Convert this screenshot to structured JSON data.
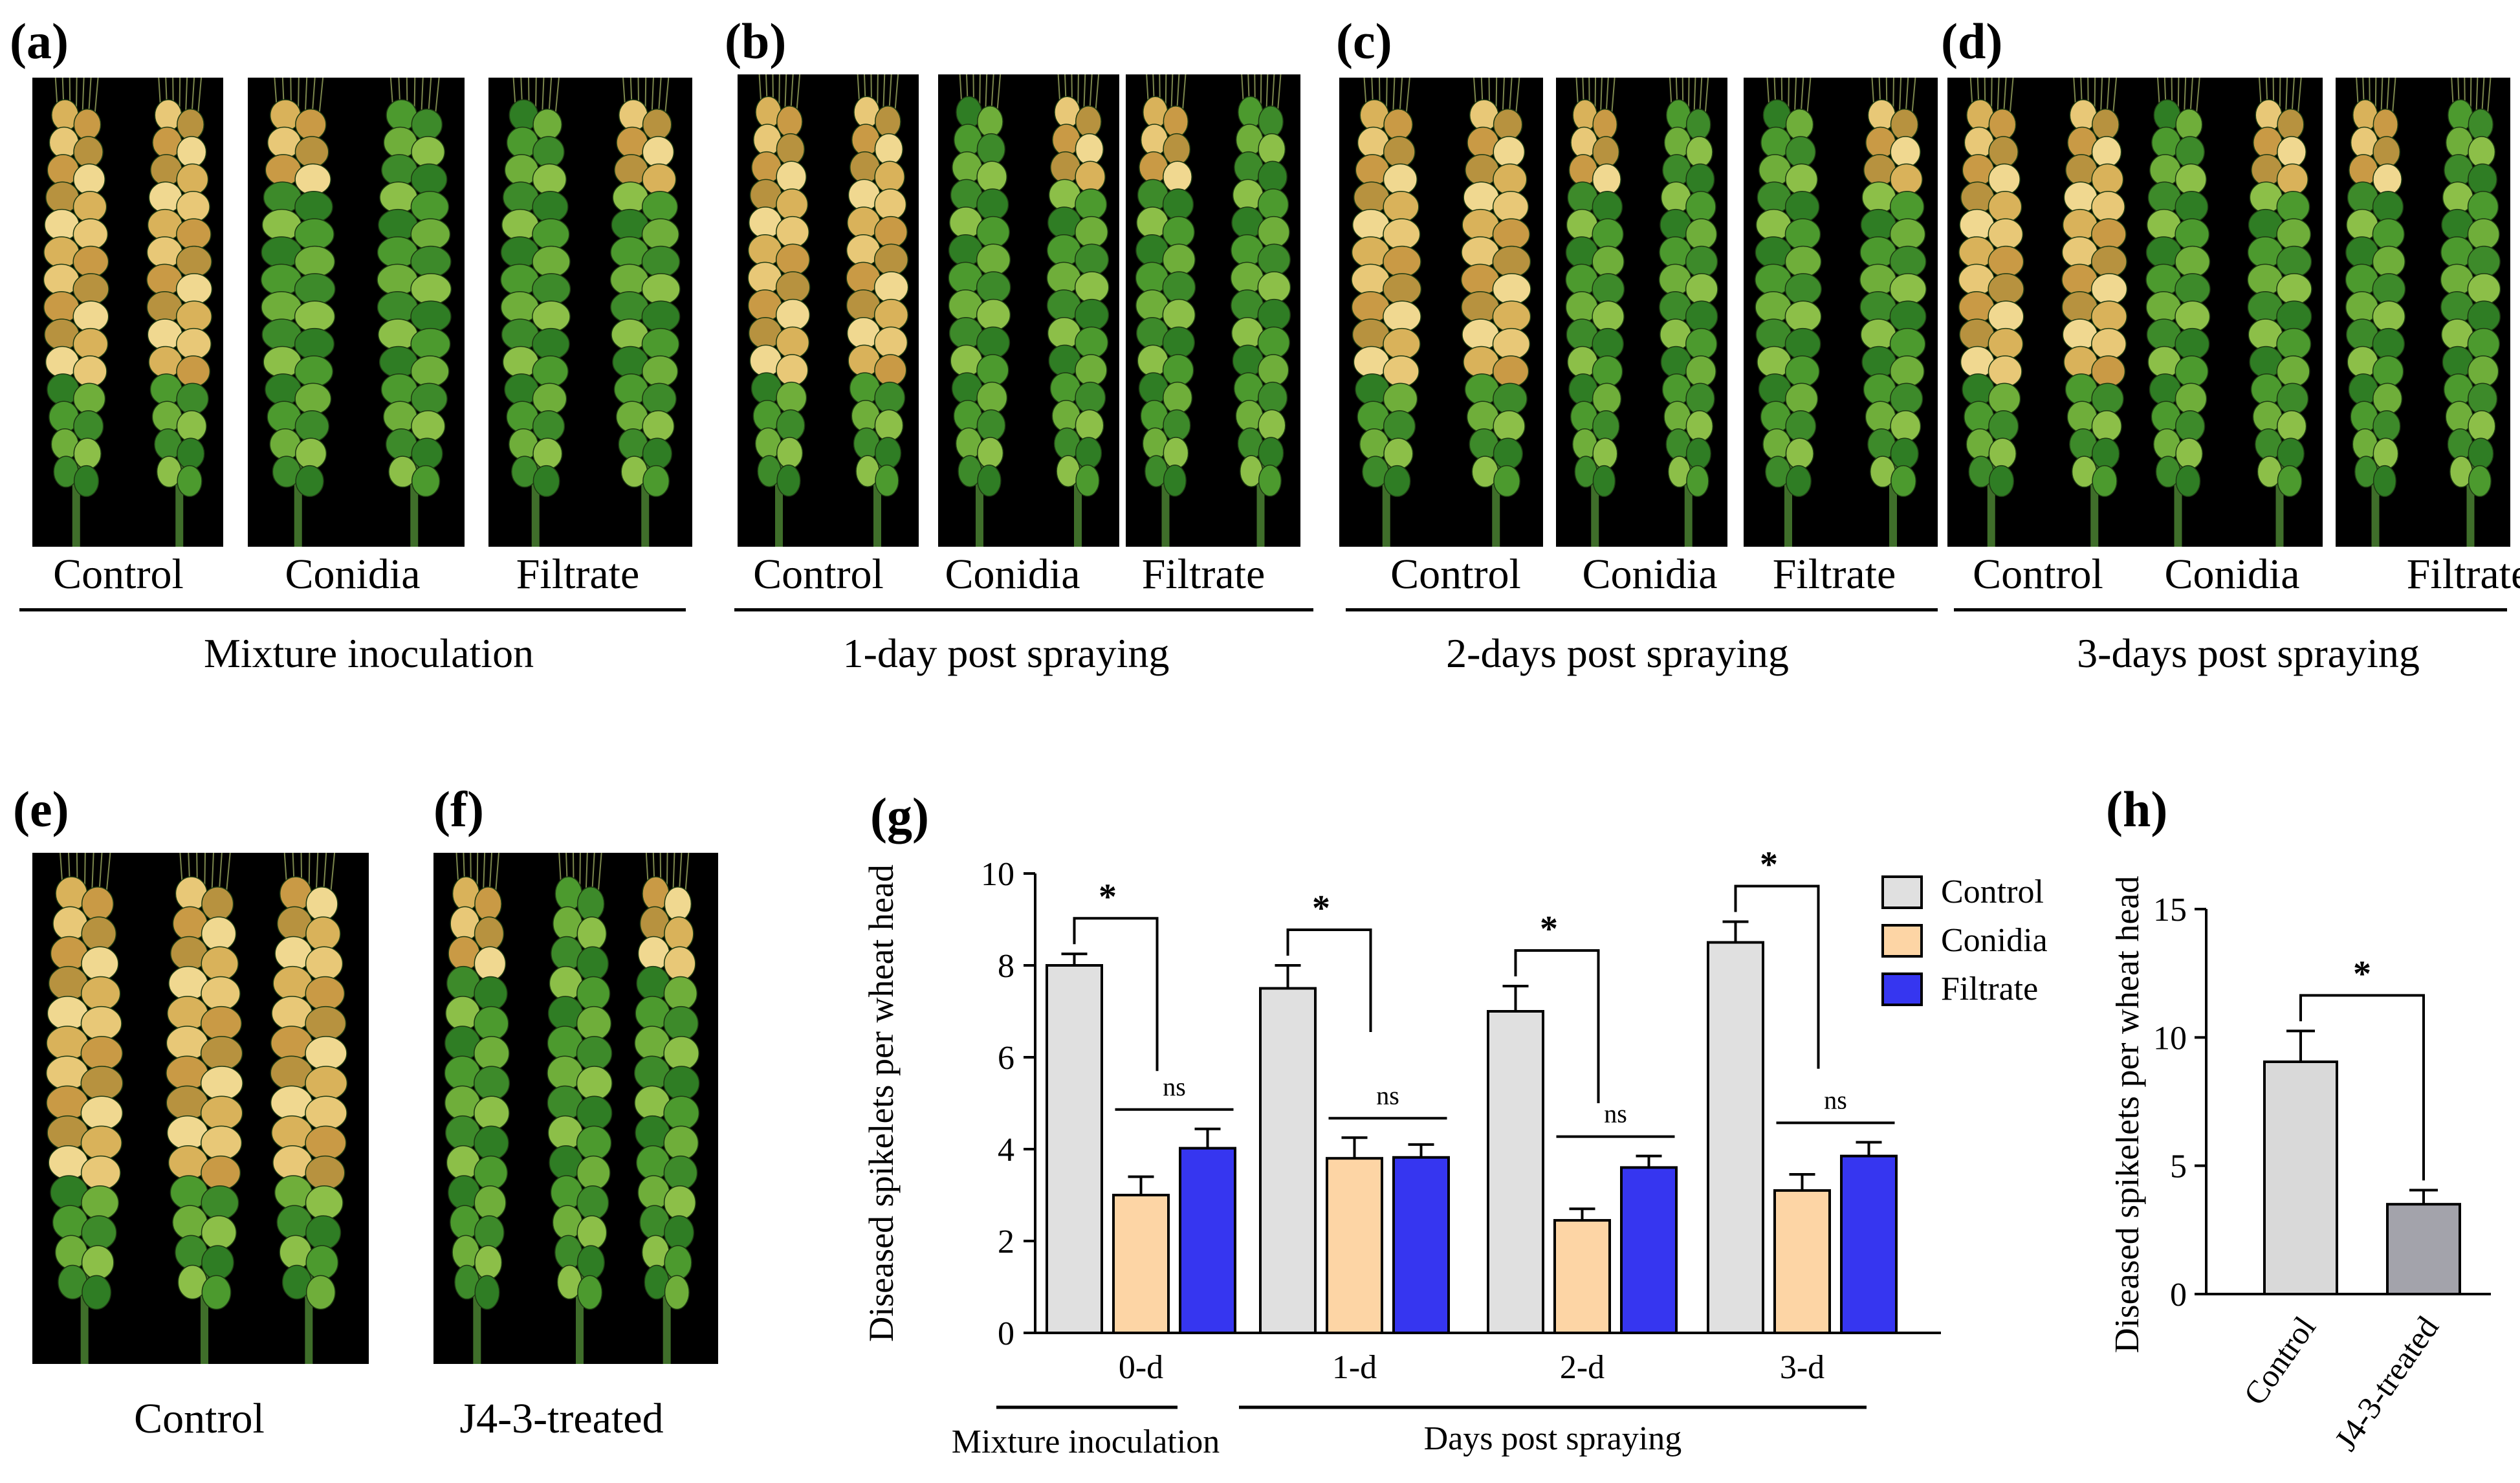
{
  "figure": {
    "panels_top": [
      {
        "letter": "(a)",
        "labels": [
          "Control",
          "Conidia",
          "Filtrate"
        ],
        "group": "Mixture inoculation"
      },
      {
        "letter": "(b)",
        "labels": [
          "Control",
          "Conidia",
          "Filtrate"
        ],
        "group": "1-day post spraying"
      },
      {
        "letter": "(c)",
        "labels": [
          "Control",
          "Conidia",
          "Filtrate"
        ],
        "group": "2-days post spraying"
      },
      {
        "letter": "(d)",
        "labels": [
          "Control",
          "Conidia",
          "Filtrate"
        ],
        "group": "3-days post spraying"
      }
    ],
    "panel_e": {
      "letter": "(e)",
      "label": "Control"
    },
    "panel_f": {
      "letter": "(f)",
      "label": "J4-3-treated"
    },
    "panel_g": {
      "letter": "(g)"
    },
    "panel_h": {
      "letter": "(h)"
    }
  },
  "chart_data": [
    {
      "type": "bar",
      "ylabel": "Diseased spikelets per wheat head",
      "ylim": [
        0,
        10
      ],
      "yticks": [
        0,
        2,
        4,
        6,
        8,
        10
      ],
      "categories": [
        "0-d",
        "1-d",
        "2-d",
        "3-d"
      ],
      "series": [
        {
          "name": "Control",
          "color": "#e0e0e0",
          "values": [
            8.0,
            7.5,
            7.0,
            8.5
          ],
          "errors": [
            0.25,
            0.5,
            0.55,
            0.45
          ]
        },
        {
          "name": "Conidia",
          "color": "#fdd5a5",
          "values": [
            3.0,
            3.8,
            2.45,
            3.1
          ],
          "errors": [
            0.4,
            0.45,
            0.25,
            0.35
          ]
        },
        {
          "name": "Filtrate",
          "color": "#3636f0",
          "values": [
            4.02,
            3.82,
            3.6,
            3.85
          ],
          "errors": [
            0.42,
            0.28,
            0.25,
            0.3
          ]
        }
      ],
      "significance": {
        "control_vs_conidia": "*",
        "conidia_vs_filtrate": "ns"
      },
      "group_labels": [
        "Mixture inoculation",
        "Days post spraying"
      ],
      "legend": "top-right"
    },
    {
      "type": "bar",
      "ylabel": "Diseased spikelets per wheat head",
      "ylim": [
        0,
        15
      ],
      "yticks": [
        0,
        5,
        10,
        15
      ],
      "categories": [
        "Control",
        "J4-3-treated"
      ],
      "values": [
        9.05,
        3.5
      ],
      "errors": [
        1.2,
        0.55
      ],
      "colors": [
        "#d9d9d9",
        "#a3a3ab"
      ],
      "significance": "*"
    }
  ]
}
